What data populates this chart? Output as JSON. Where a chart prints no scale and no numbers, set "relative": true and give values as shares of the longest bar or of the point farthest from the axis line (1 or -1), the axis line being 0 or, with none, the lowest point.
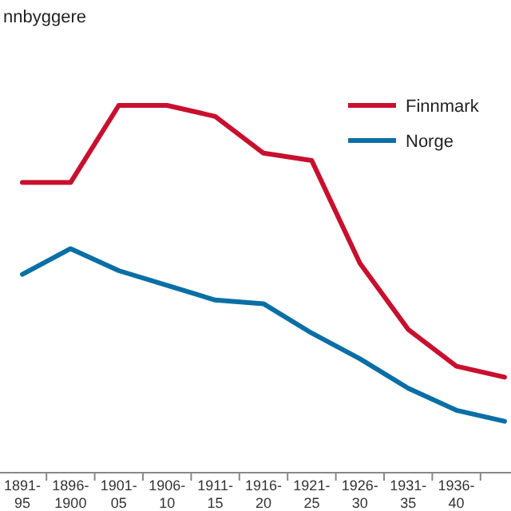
{
  "chart_data": {
    "type": "line",
    "title": "nnbyggere",
    "relative": true,
    "categories": [
      "1891-95",
      "1896-1900",
      "1901-05",
      "1906-10",
      "1911-15",
      "1916-20",
      "1921-25",
      "1926-30",
      "1931-35",
      "1936-40",
      null
    ],
    "series": [
      {
        "name": "Finnmark",
        "color": "#c8102e",
        "values": [
          0.79,
          0.79,
          1.0,
          1.0,
          0.97,
          0.87,
          0.85,
          0.57,
          0.39,
          0.29,
          0.26
        ]
      },
      {
        "name": "Norge",
        "color": "#0a6fa5",
        "values": [
          0.54,
          0.61,
          0.55,
          0.51,
          0.47,
          0.46,
          0.38,
          0.31,
          0.23,
          0.17,
          0.14
        ]
      }
    ],
    "legend": "top right",
    "grid": false,
    "marker": "none",
    "line_style": "solid"
  }
}
